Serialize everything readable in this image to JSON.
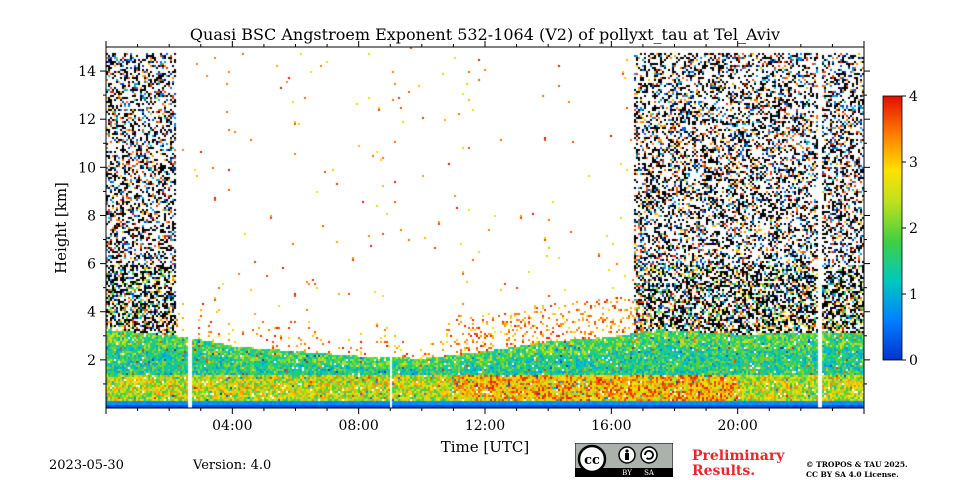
{
  "chart_data": {
    "type": "heatmap",
    "title": "Quasi BSC Angstroem Exponent 532-1064 (V2) of pollyxt_tau at Tel_Aviv",
    "xlabel": "Time [UTC]",
    "ylabel": "Height [km]",
    "x_range_hours": [
      0,
      24
    ],
    "ylim": [
      0,
      15
    ],
    "x_ticks": [
      {
        "value": 4,
        "label": "04:00"
      },
      {
        "value": 8,
        "label": "08:00"
      },
      {
        "value": 12,
        "label": "12:00"
      },
      {
        "value": 16,
        "label": "16:00"
      },
      {
        "value": 20,
        "label": "20:00"
      }
    ],
    "y_ticks": [
      2,
      4,
      6,
      8,
      10,
      12,
      14
    ],
    "colorbar": {
      "min": 0,
      "max": 4,
      "ticks": [
        0,
        1,
        2,
        3,
        4
      ],
      "colormap": "jet"
    },
    "data_gaps_utc_hours": [
      [
        2.55,
        2.7
      ],
      [
        8.95,
        9.05
      ],
      [
        22.5,
        22.62
      ]
    ],
    "aerosol_layer_top_km": [
      {
        "time": 0,
        "height": 3.3
      },
      {
        "time": 2.5,
        "height": 3.0
      },
      {
        "time": 4,
        "height": 2.6
      },
      {
        "time": 6,
        "height": 2.4
      },
      {
        "time": 8,
        "height": 2.2
      },
      {
        "time": 10,
        "height": 2.1
      },
      {
        "time": 12,
        "height": 2.4
      },
      {
        "time": 14,
        "height": 2.8
      },
      {
        "time": 16,
        "height": 3.0
      },
      {
        "time": 17.5,
        "height": 3.3
      },
      {
        "time": 20,
        "height": 3.1
      },
      {
        "time": 24,
        "height": 3.2
      }
    ],
    "noise_regions_utc_hours": [
      [
        0,
        2.2
      ],
      [
        16.7,
        24
      ]
    ],
    "background": "#ffffff"
  },
  "footer": {
    "date": "2023-05-30",
    "version": "Version: 4.0",
    "preliminary_line1": "Preliminary",
    "preliminary_line2": "Results.",
    "copyright_line1": "© TROPOS & TAU 2025.",
    "copyright_line2": "CC BY SA 4.0 License.",
    "license_badge": {
      "cc": "cc",
      "by": "BY",
      "sa": "SA"
    }
  }
}
